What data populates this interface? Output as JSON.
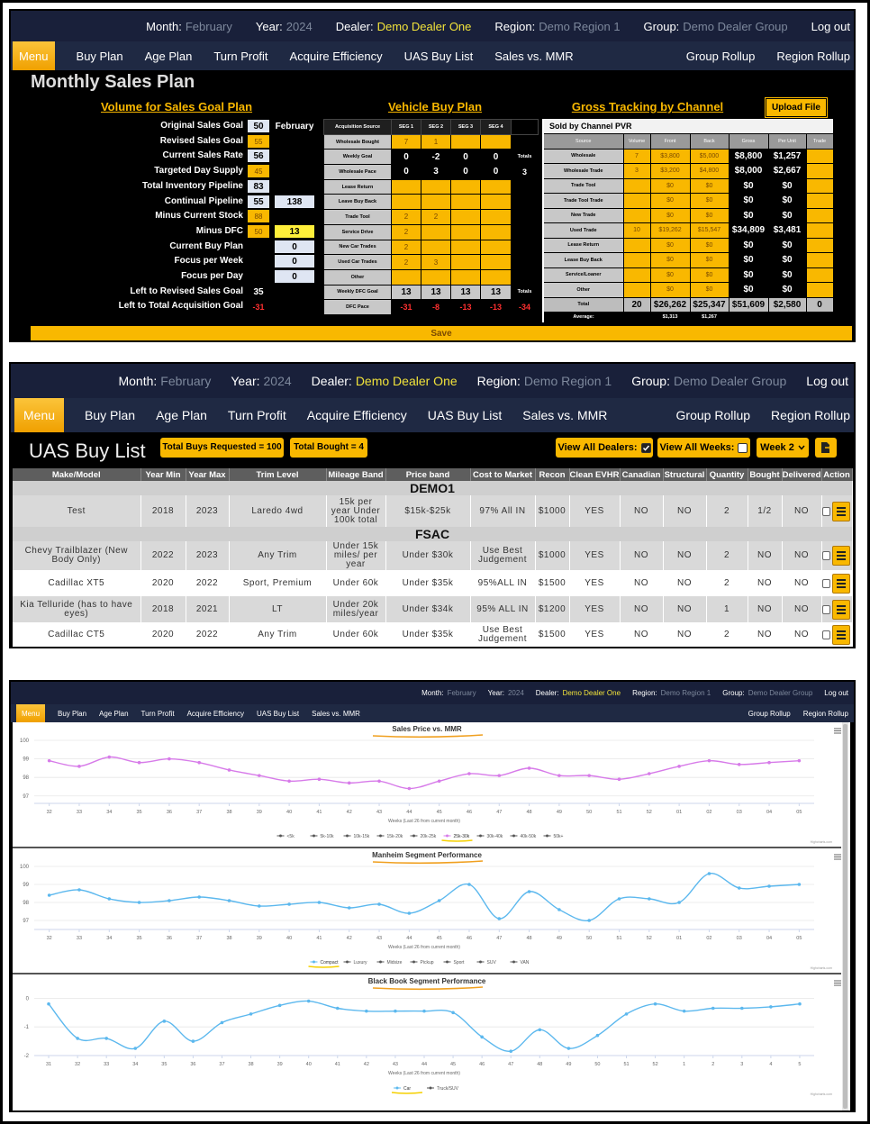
{
  "header": {
    "month_label": "Month:",
    "month": "February",
    "year_label": "Year:",
    "year": "2024",
    "dealer_label": "Dealer:",
    "dealer": "Demo Dealer One",
    "region_label": "Region:",
    "region": "Demo Region 1",
    "group_label": "Group:",
    "group": "Demo Dealer Group",
    "logout": "Log out"
  },
  "menu": {
    "items": [
      "Menu",
      "Buy Plan",
      "Age Plan",
      "Turn Profit",
      "Acquire Efficiency",
      "UAS Buy List",
      "Sales vs. MMR"
    ],
    "right_items": [
      "Group Rollup",
      "Region Rollup"
    ]
  },
  "sales_plan": {
    "title": "Monthly Sales Plan",
    "volume": {
      "title": "Volume for Sales Goal Plan",
      "rows": [
        [
          "Original Sales Goal",
          50,
          "February"
        ],
        [
          "Revised Sales Goal",
          55,
          null
        ],
        [
          "Current Sales Rate",
          56,
          null
        ],
        [
          "Targeted Day Supply",
          45,
          null
        ],
        [
          "Total Inventory Pipeline",
          83,
          null
        ],
        [
          "Continual Pipeline",
          55,
          138
        ],
        [
          "Minus Current Stock",
          88,
          null
        ],
        [
          "Minus DFC",
          50,
          13
        ],
        [
          "Current Buy Plan",
          null,
          0
        ],
        [
          "Focus per Week",
          null,
          0
        ],
        [
          "Focus per Day",
          null,
          0
        ],
        [
          "Left to Revised Sales Goal",
          35,
          null
        ],
        [
          "Left to Total Acquisition Goal",
          -31,
          null
        ]
      ]
    },
    "buy_plan": {
      "title": "Vehicle Buy Plan",
      "columns": [
        "Acquisition Source",
        "SEG 1",
        "SEG 2",
        "SEG 3",
        "SEG 4",
        null
      ],
      "rows": [
        [
          "Wholesale Bought",
          7,
          1,
          null,
          null,
          null
        ],
        [
          "Weekly Goal",
          0,
          -2,
          0,
          0,
          "Totals"
        ],
        [
          "Wholesale Pace",
          0,
          3,
          0,
          0,
          3
        ],
        [
          "Lease Return",
          null,
          null,
          null,
          null,
          null
        ],
        [
          "Leave Buy Back",
          null,
          null,
          null,
          null,
          null
        ],
        [
          "Trade Tool",
          2,
          2,
          null,
          null,
          null
        ],
        [
          "Service Drive",
          2,
          null,
          null,
          null,
          null
        ],
        [
          "New Car Trades",
          2,
          null,
          null,
          null,
          null
        ],
        [
          "Used Car Trades",
          2,
          3,
          null,
          null,
          null
        ],
        [
          "Other",
          null,
          null,
          null,
          null,
          null
        ],
        [
          "Weekly DFC Goal",
          13,
          13,
          13,
          13,
          "Totals"
        ],
        [
          "DFC Pace",
          -31,
          -8,
          -13,
          -13,
          -34
        ]
      ]
    },
    "gross": {
      "title": "Gross Tracking by Channel",
      "upload": "Upload File",
      "subtitle": "Sold by Channel PVR",
      "columns": [
        "Source",
        "Volume",
        "Front",
        "Back",
        "Gross",
        "Per Unit",
        "Trade"
      ],
      "rows": [
        [
          "Wholesale",
          7,
          "$3,800",
          "$5,000",
          "$8,800",
          "$1,257",
          null
        ],
        [
          "Wholesale Trade",
          3,
          "$3,200",
          "$4,800",
          "$8,000",
          "$2,667",
          null
        ],
        [
          "Trade Tool",
          null,
          "$0",
          "$0",
          "$0",
          "$0",
          null
        ],
        [
          "Trade Tool Trade",
          null,
          "$0",
          "$0",
          "$0",
          "$0",
          null
        ],
        [
          "New Trade",
          null,
          "$0",
          "$0",
          "$0",
          "$0",
          null
        ],
        [
          "Used Trade",
          10,
          "$19,262",
          "$15,547",
          "$34,809",
          "$3,481",
          null
        ],
        [
          "Lease Return",
          null,
          "$0",
          "$0",
          "$0",
          "$0",
          null
        ],
        [
          "Lease Buy Back",
          null,
          "$0",
          "$0",
          "$0",
          "$0",
          null
        ],
        [
          "Service/Loaner",
          null,
          "$0",
          "$0",
          "$0",
          "$0",
          null
        ],
        [
          "Other",
          null,
          "$0",
          "$0",
          "$0",
          "$0",
          null
        ]
      ],
      "total_row": [
        "Total",
        20,
        "$26,262",
        "$25,347",
        "$51,609",
        "$2,580",
        0
      ],
      "average_row": [
        "Average:",
        null,
        "$1,313",
        "$1,267",
        null,
        null,
        null
      ]
    },
    "save": "Save"
  },
  "buy_list": {
    "title": "UAS Buy List",
    "total_requested": "Total Buys Requested = 100",
    "total_bought": "Total Bought = 4",
    "view_all_dealers": "View All Dealers:",
    "view_all_weeks": "View All Weeks:",
    "week": "Week 2",
    "columns": [
      "Make/Model",
      "Year Min",
      "Year Max",
      "Trim Level",
      "Mileage Band",
      "Price band",
      "Cost to Market",
      "Recon",
      "Clean EVHR",
      "Canadian",
      "Structural",
      "Quantity",
      "Bought",
      "Delivered",
      "Action"
    ],
    "groups": [
      {
        "name": "DEMO1",
        "rows": [
          [
            "Test",
            2018,
            2023,
            "Laredo 4wd",
            "15k per year Under 100k total",
            "$15k-$25k",
            "97% All IN",
            "$1000",
            "YES",
            "NO",
            "NO",
            2,
            "1/2",
            "NO",
            null
          ]
        ]
      },
      {
        "name": "FSAC",
        "rows": [
          [
            "Chevy Trailblazer (New Body Only)",
            2022,
            2023,
            "Any Trim",
            "Under 15k miles/ per year",
            "Under $30k",
            "Use Best Judgement",
            "$1000",
            "YES",
            "NO",
            "NO",
            2,
            "NO",
            "NO",
            null
          ],
          [
            "Cadillac XT5",
            2020,
            2022,
            "Sport, Premium",
            "Under 60k",
            "Under $35k",
            "95%ALL IN",
            "$1500",
            "YES",
            "NO",
            "NO",
            2,
            "NO",
            "NO",
            null
          ],
          [
            "Kia Telluride (has to have eyes)",
            2018,
            2021,
            "LT",
            "Under 20k miles/year",
            "Under $34k",
            "95% ALL IN",
            "$1200",
            "YES",
            "NO",
            "NO",
            1,
            "NO",
            "NO",
            null
          ],
          [
            "Cadillac CT5",
            2020,
            2022,
            "Any Trim",
            "Under 60k",
            "Under $35k",
            "Use Best Judgement",
            "$1500",
            "YES",
            "NO",
            "NO",
            2,
            "NO",
            "NO",
            null
          ]
        ]
      }
    ]
  },
  "chart_data": [
    {
      "type": "line",
      "title": "Sales Price vs. MMR",
      "categories": [
        "32",
        "33",
        "34",
        "35",
        "36",
        "37",
        "38",
        "39",
        "40",
        "41",
        "42",
        "43",
        "44",
        "45",
        "46",
        "47",
        "48",
        "49",
        "50",
        "51",
        "52",
        "01",
        "02",
        "03",
        "04",
        "05"
      ],
      "series": [
        {
          "name": "<5k",
          "visible": false
        },
        {
          "name": "5k-10k",
          "visible": false
        },
        {
          "name": "10k-15k",
          "visible": false
        },
        {
          "name": "15k-20k",
          "visible": false
        },
        {
          "name": "20k-25k",
          "visible": false
        },
        {
          "name": "25k-30k",
          "visible": true,
          "color": "#d77be9",
          "values": [
            98.9,
            98.6,
            99.1,
            98.8,
            99.0,
            98.8,
            98.4,
            98.1,
            97.8,
            97.9,
            97.7,
            97.8,
            97.4,
            97.8,
            98.2,
            98.1,
            98.5,
            98.1,
            98.1,
            97.9,
            98.2,
            98.6,
            98.9,
            98.7,
            98.8,
            98.9
          ]
        },
        {
          "name": "30k-40k",
          "visible": false
        },
        {
          "name": "40k-50k",
          "visible": false
        },
        {
          "name": "50k+",
          "visible": false
        }
      ],
      "ylim": [
        96.6,
        100
      ],
      "yticks": [
        97,
        98,
        99,
        100
      ],
      "grid": true,
      "xlabel": "Weeks (Last 26 from current month)",
      "credits": "Highcharts.com"
    },
    {
      "type": "line",
      "title": "Manheim Segment Performance",
      "categories": [
        "32",
        "33",
        "34",
        "35",
        "36",
        "37",
        "38",
        "39",
        "40",
        "41",
        "42",
        "43",
        "44",
        "45",
        "46",
        "47",
        "48",
        "49",
        "50",
        "51",
        "52",
        "01",
        "02",
        "03",
        "04",
        "05"
      ],
      "series": [
        {
          "name": "Compact",
          "visible": true,
          "color": "#5cb8ee",
          "values": [
            98.4,
            98.7,
            98.2,
            98.0,
            98.1,
            98.3,
            98.1,
            97.8,
            97.9,
            98.0,
            97.7,
            97.9,
            97.4,
            98.1,
            99.0,
            97.1,
            98.6,
            97.6,
            97.0,
            98.2,
            98.2,
            98.0,
            99.6,
            98.8,
            98.9,
            99.0
          ]
        },
        {
          "name": "Luxury",
          "visible": false
        },
        {
          "name": "Midsize",
          "visible": false
        },
        {
          "name": "Pickup",
          "visible": false
        },
        {
          "name": "Sport",
          "visible": false
        },
        {
          "name": "SUV",
          "visible": false
        },
        {
          "name": "VAN",
          "visible": false
        }
      ],
      "ylim": [
        96.5,
        100
      ],
      "yticks": [
        97,
        98,
        99,
        100
      ],
      "grid": true,
      "xlabel": "Weeks (Last 26 from current month)",
      "credits": "Highcharts.com"
    },
    {
      "type": "line",
      "title": "Black Book Segment Performance",
      "categories": [
        "31",
        "32",
        "33",
        "34",
        "35",
        "36",
        "37",
        "38",
        "39",
        "40",
        "41",
        "42",
        "43",
        "44",
        "45",
        "46",
        "47",
        "48",
        "49",
        "50",
        "51",
        "52",
        "1",
        "2",
        "3",
        "4",
        "5"
      ],
      "series": [
        {
          "name": "Car",
          "visible": true,
          "color": "#5cb8ee",
          "values": [
            -0.2,
            -1.4,
            -1.4,
            -1.75,
            -0.8,
            -1.5,
            -0.85,
            -0.55,
            -0.25,
            -0.1,
            -0.35,
            -0.45,
            -0.45,
            -0.45,
            -0.5,
            -1.35,
            -1.85,
            -1.1,
            -1.75,
            -1.3,
            -0.55,
            -0.2,
            -0.45,
            -0.35,
            -0.35,
            -0.3,
            -0.2
          ]
        },
        {
          "name": "Truck/SUV",
          "visible": false
        }
      ],
      "ylim": [
        -2,
        0.2
      ],
      "yticks": [
        -2,
        -1,
        0
      ],
      "grid": true,
      "xlabel": "Weeks (Last 26 from current month)",
      "credits": "Highcharts.com"
    }
  ]
}
